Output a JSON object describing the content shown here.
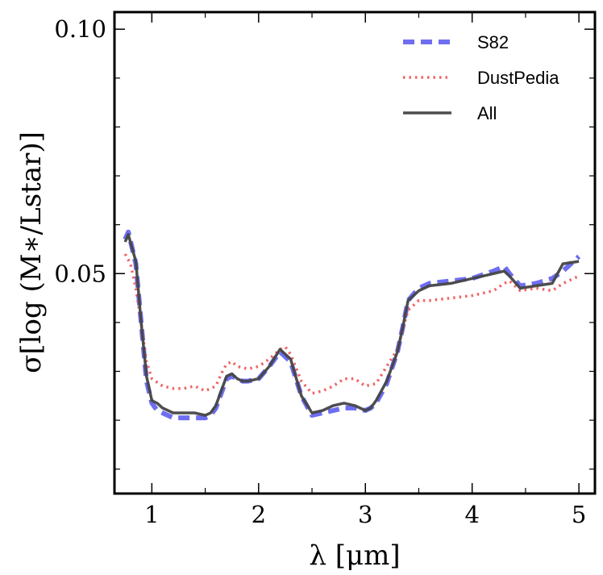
{
  "chart_data": {
    "type": "line",
    "xlabel": "λ [μm]",
    "ylabel": "σ[log (M∗/Lstar)]",
    "xlim": [
      0.65,
      5.15
    ],
    "ylim": [
      0.005,
      0.1035
    ],
    "x_major_ticks": [
      1,
      2,
      3,
      4,
      5
    ],
    "x_tick_labels": [
      "1",
      "2",
      "3",
      "4",
      "5"
    ],
    "x_minor_ticks": [
      1.5,
      2.5,
      3.5,
      4.5
    ],
    "y_major_ticks": [
      0.05,
      0.1
    ],
    "y_tick_labels": [
      "0.05",
      "0.10"
    ],
    "y_minor_ticks": [
      0.01,
      0.02,
      0.03,
      0.04,
      0.06,
      0.07,
      0.08,
      0.09
    ],
    "grid": false,
    "legend_position": "top-right",
    "series": [
      {
        "name": "S82",
        "color": "#5555ee",
        "style": "dashed",
        "x": [
          0.75,
          0.78,
          0.85,
          0.9,
          0.95,
          1.0,
          1.05,
          1.1,
          1.2,
          1.3,
          1.4,
          1.5,
          1.55,
          1.6,
          1.65,
          1.7,
          1.75,
          1.8,
          1.85,
          1.9,
          2.0,
          2.1,
          2.2,
          2.3,
          2.4,
          2.5,
          2.6,
          2.7,
          2.8,
          2.9,
          3.0,
          3.05,
          3.1,
          3.2,
          3.3,
          3.35,
          3.4,
          3.5,
          3.6,
          3.8,
          4.0,
          4.2,
          4.3,
          4.35,
          4.45,
          4.6,
          4.75,
          4.85,
          5.0
        ],
        "y": [
          0.057,
          0.0585,
          0.052,
          0.04,
          0.028,
          0.0235,
          0.022,
          0.0215,
          0.0205,
          0.0205,
          0.0205,
          0.0205,
          0.021,
          0.0225,
          0.0255,
          0.0285,
          0.029,
          0.0285,
          0.028,
          0.028,
          0.0285,
          0.031,
          0.034,
          0.032,
          0.025,
          0.021,
          0.0215,
          0.022,
          0.0225,
          0.0225,
          0.022,
          0.0225,
          0.0235,
          0.0275,
          0.034,
          0.039,
          0.0445,
          0.047,
          0.048,
          0.0485,
          0.049,
          0.0505,
          0.0515,
          0.05,
          0.0475,
          0.048,
          0.049,
          0.0505,
          0.0535
        ]
      },
      {
        "name": "DustPedia",
        "color": "#ee5555",
        "style": "dotted",
        "x": [
          0.75,
          0.8,
          0.85,
          0.9,
          0.95,
          1.0,
          1.1,
          1.2,
          1.3,
          1.4,
          1.5,
          1.6,
          1.65,
          1.7,
          1.75,
          1.8,
          1.9,
          2.0,
          2.1,
          2.2,
          2.25,
          2.3,
          2.4,
          2.5,
          2.6,
          2.7,
          2.8,
          2.9,
          3.0,
          3.1,
          3.2,
          3.3,
          3.35,
          3.4,
          3.5,
          3.6,
          3.8,
          4.0,
          4.2,
          4.3,
          4.35,
          4.45,
          4.6,
          4.75,
          4.85,
          5.0
        ],
        "y": [
          0.054,
          0.052,
          0.047,
          0.04,
          0.032,
          0.0285,
          0.027,
          0.0265,
          0.0265,
          0.027,
          0.026,
          0.027,
          0.0295,
          0.0315,
          0.032,
          0.031,
          0.0305,
          0.031,
          0.0325,
          0.0345,
          0.035,
          0.0335,
          0.028,
          0.0255,
          0.026,
          0.027,
          0.0285,
          0.0285,
          0.027,
          0.0275,
          0.031,
          0.0345,
          0.0385,
          0.0425,
          0.0445,
          0.0445,
          0.045,
          0.0455,
          0.0465,
          0.048,
          0.0485,
          0.0465,
          0.047,
          0.0465,
          0.048,
          0.0495
        ]
      },
      {
        "name": "All",
        "color": "#444444",
        "style": "solid",
        "x": [
          0.75,
          0.78,
          0.85,
          0.9,
          0.95,
          1.0,
          1.05,
          1.1,
          1.2,
          1.3,
          1.4,
          1.5,
          1.55,
          1.6,
          1.65,
          1.7,
          1.75,
          1.8,
          1.85,
          1.9,
          2.0,
          2.1,
          2.2,
          2.3,
          2.4,
          2.5,
          2.6,
          2.7,
          2.8,
          2.9,
          3.0,
          3.05,
          3.1,
          3.2,
          3.3,
          3.35,
          3.4,
          3.5,
          3.6,
          3.8,
          4.0,
          4.2,
          4.3,
          4.35,
          4.45,
          4.6,
          4.75,
          4.85,
          5.0
        ],
        "y": [
          0.0565,
          0.058,
          0.0525,
          0.04,
          0.029,
          0.024,
          0.0235,
          0.0225,
          0.0215,
          0.0215,
          0.0215,
          0.021,
          0.0215,
          0.023,
          0.026,
          0.029,
          0.0295,
          0.0285,
          0.028,
          0.028,
          0.0285,
          0.031,
          0.0345,
          0.0325,
          0.025,
          0.0215,
          0.022,
          0.023,
          0.0235,
          0.023,
          0.022,
          0.0225,
          0.024,
          0.028,
          0.034,
          0.039,
          0.0445,
          0.0465,
          0.0475,
          0.048,
          0.049,
          0.05,
          0.0505,
          0.0495,
          0.047,
          0.0475,
          0.048,
          0.052,
          0.0525
        ]
      }
    ]
  }
}
